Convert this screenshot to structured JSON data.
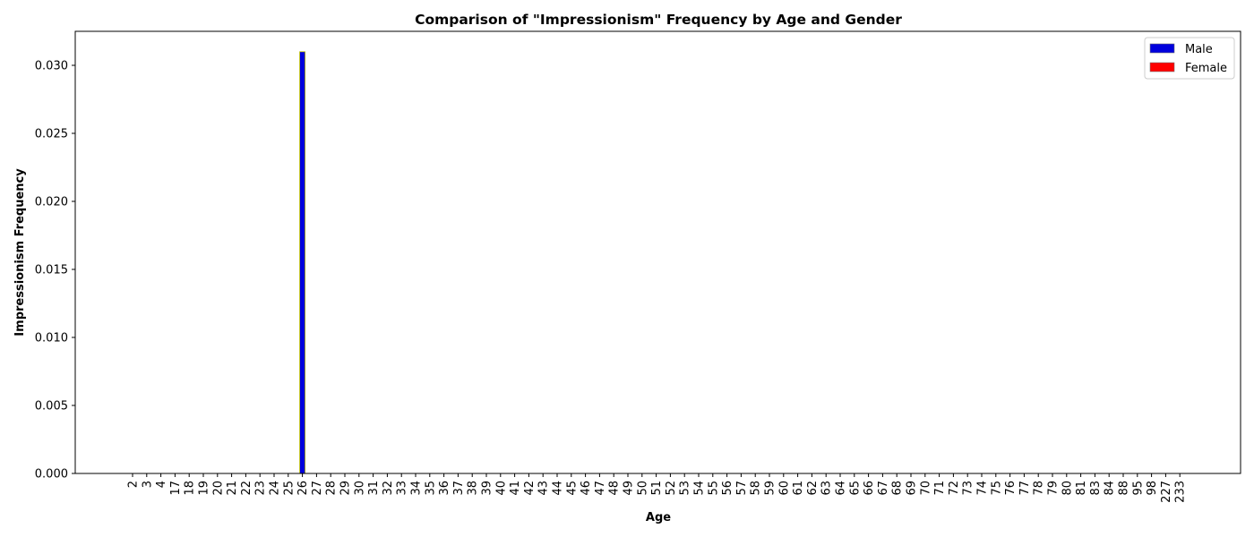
{
  "chart_data": {
    "type": "bar",
    "title": "Comparison of \"Impressionism\" Frequency by Age and Gender",
    "xlabel": "Age",
    "ylabel": "Impressionism Frequency",
    "categories": [
      "2",
      "3",
      "4",
      "17",
      "18",
      "19",
      "20",
      "21",
      "22",
      "23",
      "24",
      "25",
      "26",
      "27",
      "28",
      "29",
      "30",
      "31",
      "32",
      "33",
      "34",
      "35",
      "36",
      "37",
      "38",
      "39",
      "40",
      "41",
      "42",
      "43",
      "44",
      "45",
      "46",
      "47",
      "48",
      "49",
      "50",
      "51",
      "52",
      "53",
      "54",
      "55",
      "56",
      "57",
      "58",
      "59",
      "60",
      "61",
      "62",
      "63",
      "64",
      "65",
      "66",
      "67",
      "68",
      "69",
      "70",
      "71",
      "72",
      "73",
      "74",
      "75",
      "76",
      "77",
      "78",
      "79",
      "80",
      "81",
      "83",
      "84",
      "88",
      "95",
      "98",
      "227",
      "233"
    ],
    "series": [
      {
        "name": "Male",
        "color": "#0000dd",
        "values": {
          "26": 0.031
        }
      },
      {
        "name": "Female",
        "color": "#ff0000",
        "values": {}
      }
    ],
    "ylim": [
      0,
      0.0325
    ],
    "yticks": [
      "0.000",
      "0.005",
      "0.010",
      "0.015",
      "0.020",
      "0.025",
      "0.030"
    ],
    "grid": false,
    "legend_position": "top-right"
  }
}
